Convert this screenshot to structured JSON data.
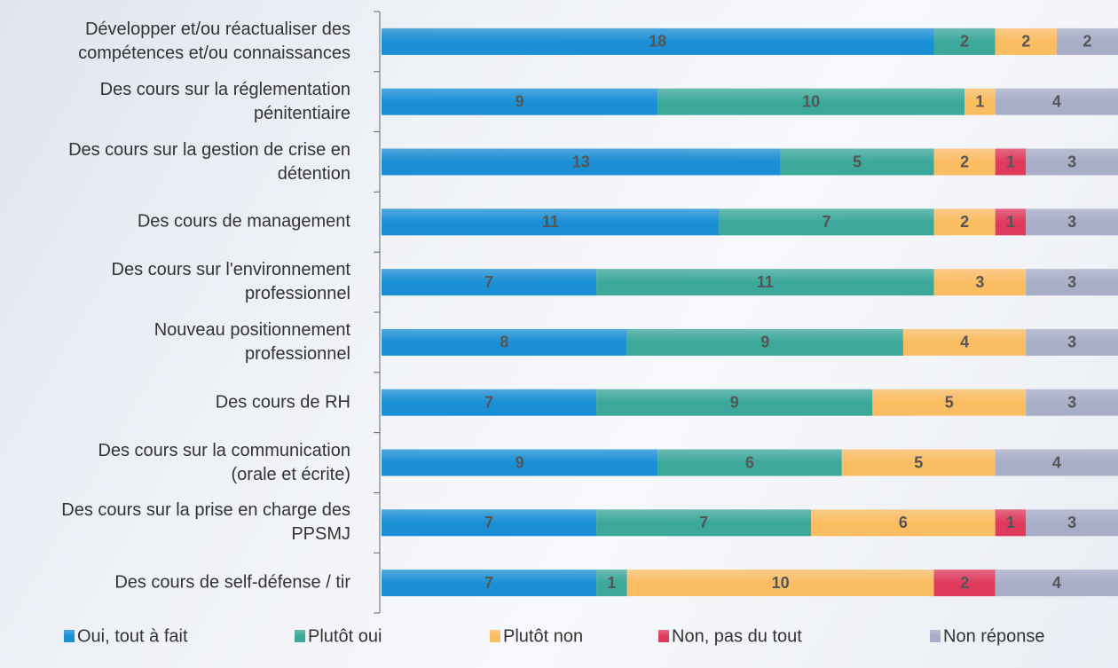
{
  "chart_data": {
    "type": "stacked-bar-horizontal",
    "categories": [
      "Développer et/ou réactualiser des\ncompétences et/ou connaissances",
      "Des cours sur la réglementation\npénitentiaire",
      "Des cours sur la gestion de crise en\ndétention",
      "Des cours de management",
      "Des cours sur l'environnement\nprofessionnel",
      "Nouveau positionnement\nprofessionnel",
      "Des cours de RH",
      "Des cours sur la communication\n(orale et écrite)",
      "Des cours sur la prise en charge des\nPPSMJ",
      "Des cours de self-défense / tir"
    ],
    "series": [
      {
        "name": "Oui, tout à fait",
        "color": "#1a8fd6",
        "values": [
          18,
          9,
          13,
          11,
          7,
          8,
          7,
          9,
          7,
          7
        ]
      },
      {
        "name": "Plutôt oui",
        "color": "#3ba89a",
        "values": [
          2,
          10,
          5,
          7,
          11,
          9,
          9,
          6,
          7,
          1
        ]
      },
      {
        "name": "Plutôt non",
        "color": "#fbbd62",
        "values": [
          2,
          1,
          2,
          2,
          3,
          4,
          5,
          5,
          6,
          10
        ]
      },
      {
        "name": "Non, pas du tout",
        "color": "#df3a5c",
        "values": [
          null,
          null,
          1,
          1,
          null,
          null,
          null,
          null,
          1,
          2
        ]
      },
      {
        "name": "Non réponse",
        "color": "#a9aec8",
        "values": [
          2,
          4,
          3,
          3,
          3,
          3,
          3,
          4,
          3,
          4
        ]
      }
    ]
  }
}
